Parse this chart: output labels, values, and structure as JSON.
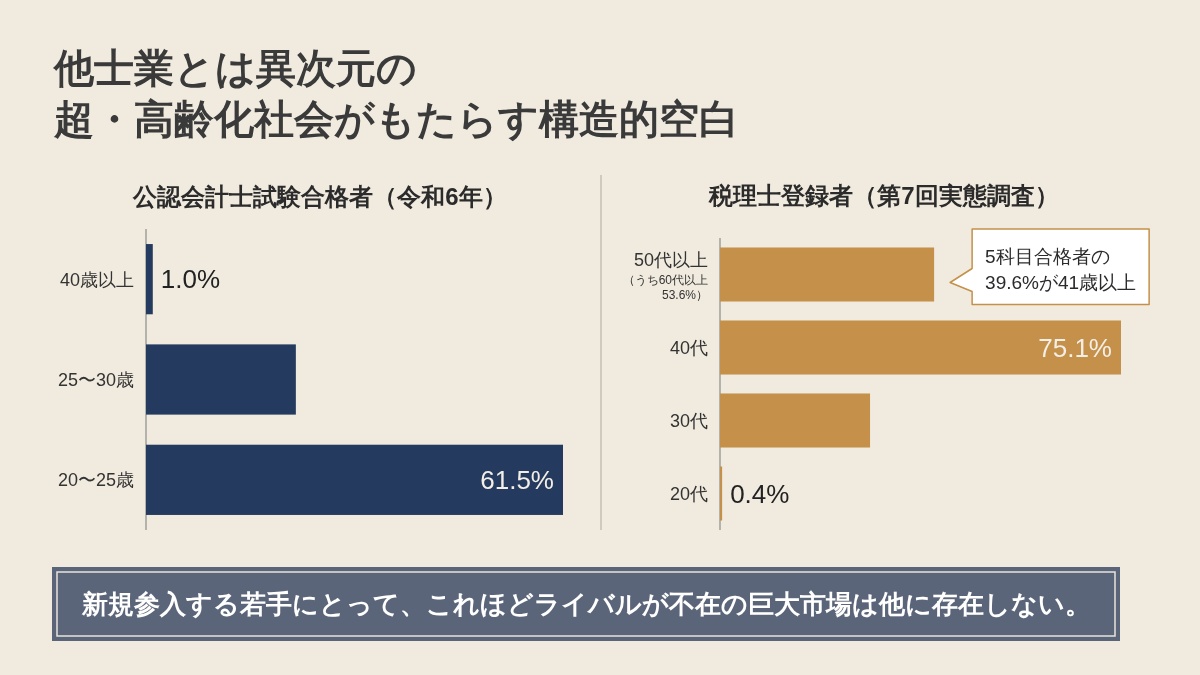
{
  "chart_data": [
    {
      "type": "other",
      "title": "他士業とは異次元の",
      "subtitle": "超・高齢化社会がもたらす構造的空白"
    },
    {
      "type": "bar",
      "orientation": "horizontal",
      "title": "公認会計士試験合格者（令和6年）",
      "categories": [
        "40歳以上",
        "25〜30歳",
        "20〜25歳"
      ],
      "values": [
        1.0,
        22.1,
        61.5
      ],
      "value_labels": [
        "1.0%",
        null,
        "61.5%"
      ],
      "color": "#243a5e"
    },
    {
      "type": "bar",
      "orientation": "horizontal",
      "title": "税理士登録者（第7回実態調査）",
      "categories": [
        "50代以上（うち60代以上53.6%）",
        "40代",
        "30代",
        "20代"
      ],
      "values": [
        40.1,
        75.1,
        28.1,
        0.4
      ],
      "value_labels": [
        null,
        "75.1%",
        null,
        "0.4%"
      ],
      "color": "#c4904a",
      "annotations": [
        {
          "text": "5科目合格者の39.6%が41歳以上",
          "x": 40.1,
          "y": "50代以上（うち60代以上53.6%）"
        }
      ]
    },
    {
      "type": "other",
      "annotations": [
        "新規参入する若手にとって、これほどライバルが不在の巨大市場は他に存在しない。"
      ]
    }
  ]
}
